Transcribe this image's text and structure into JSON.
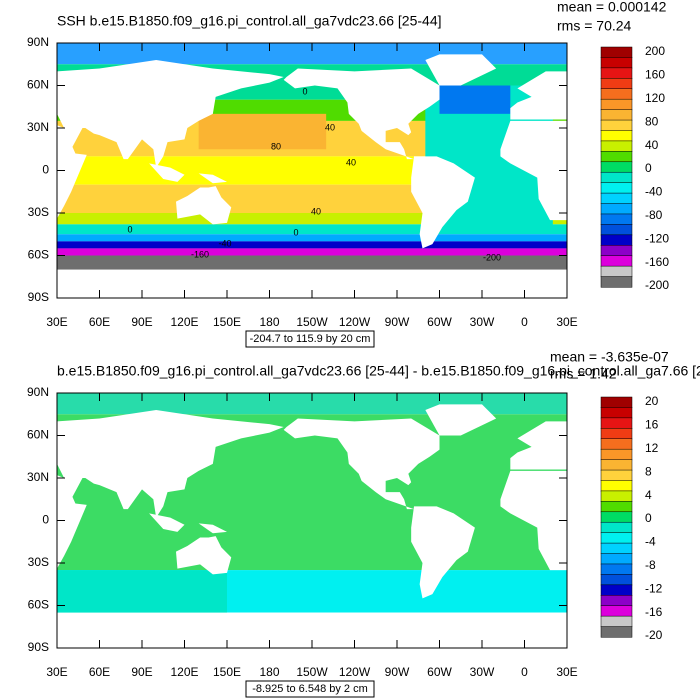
{
  "plots": [
    {
      "title": "SSH b.e15.B1850.f09_g16.pi_control.all_ga7vdc23.66 [25-44]",
      "mean": "mean = 0.000142",
      "rms": "rms = 70.24",
      "lat_labels": [
        "90N",
        "60N",
        "30N",
        "0",
        "30S",
        "60S",
        "90S"
      ],
      "lon_labels": [
        "30E",
        "60E",
        "90E",
        "120E",
        "150E",
        "180",
        "150W",
        "120W",
        "90W",
        "60W",
        "30W",
        "0",
        "30E"
      ],
      "colorbar_labels": [
        "200",
        "160",
        "120",
        "80",
        "40",
        "0",
        "-40",
        "-80",
        "-120",
        "-160",
        "-200"
      ],
      "range_note": "-204.7 to 115.9 by 20 cm",
      "contour_labels": [
        "0",
        "40",
        "80",
        "40",
        "40",
        "0",
        "0",
        "-40",
        "-160",
        "-200"
      ]
    },
    {
      "title": "b.e15.B1850.f09_g16.pi_control.all_ga7vdc23.66 [25-44] - b.e15.B1850.f09_g16.pi_control.all_ga7.66 [2",
      "mean": "mean = -3.635e-07",
      "rms": "rms = 1.42",
      "lat_labels": [
        "90N",
        "60N",
        "30N",
        "0",
        "30S",
        "60S",
        "90S"
      ],
      "lon_labels": [
        "30E",
        "60E",
        "90E",
        "120E",
        "150E",
        "180",
        "150W",
        "120W",
        "90W",
        "60W",
        "30W",
        "0",
        "30E"
      ],
      "colorbar_labels": [
        "20",
        "16",
        "12",
        "8",
        "4",
        "0",
        "-4",
        "-8",
        "-12",
        "-16",
        "-20"
      ],
      "range_note": "-8.925 to 6.548 by 2 cm"
    }
  ]
}
